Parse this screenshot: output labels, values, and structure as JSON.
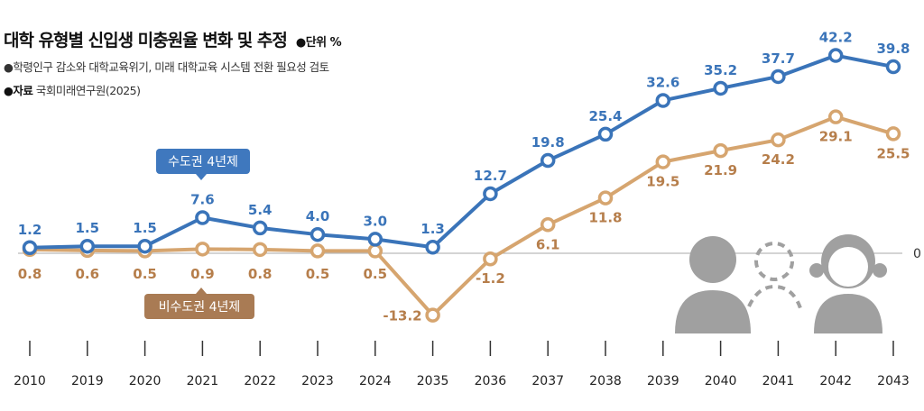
{
  "title": "대학 유형별 신입생 미충원율 변화 및 추정",
  "unit": "●단위 %",
  "subtitle": "●학령인구 감소와 대학교육위기, 미래 대학교육 시스템 전환 필요성 검토",
  "source_label": "●자료",
  "source": "국회미래연구원(2025)",
  "chart_data": {
    "type": "line",
    "categories": [
      "2010",
      "2019",
      "2020",
      "2021",
      "2022",
      "2023",
      "2024",
      "2035",
      "2036",
      "2037",
      "2038",
      "2039",
      "2040",
      "2041",
      "2042",
      "2043"
    ],
    "series": [
      {
        "name": "수도권 4년제",
        "color": "#3a74b9",
        "values": [
          1.2,
          1.5,
          1.5,
          7.6,
          5.4,
          4.0,
          3.0,
          1.3,
          12.7,
          19.8,
          25.4,
          32.6,
          35.2,
          37.7,
          42.2,
          39.8
        ]
      },
      {
        "name": "비수도권 4년제",
        "color": "#d6a56f",
        "label_color": "#b67e4b",
        "box_color": "#a97b54",
        "values": [
          0.8,
          0.6,
          0.5,
          0.9,
          0.8,
          0.5,
          0.5,
          -13.2,
          -1.2,
          6.1,
          11.8,
          19.5,
          21.9,
          24.2,
          29.1,
          25.5
        ]
      }
    ],
    "baseline_label": "0",
    "ylim": [
      -15,
      45
    ],
    "grid": false
  }
}
